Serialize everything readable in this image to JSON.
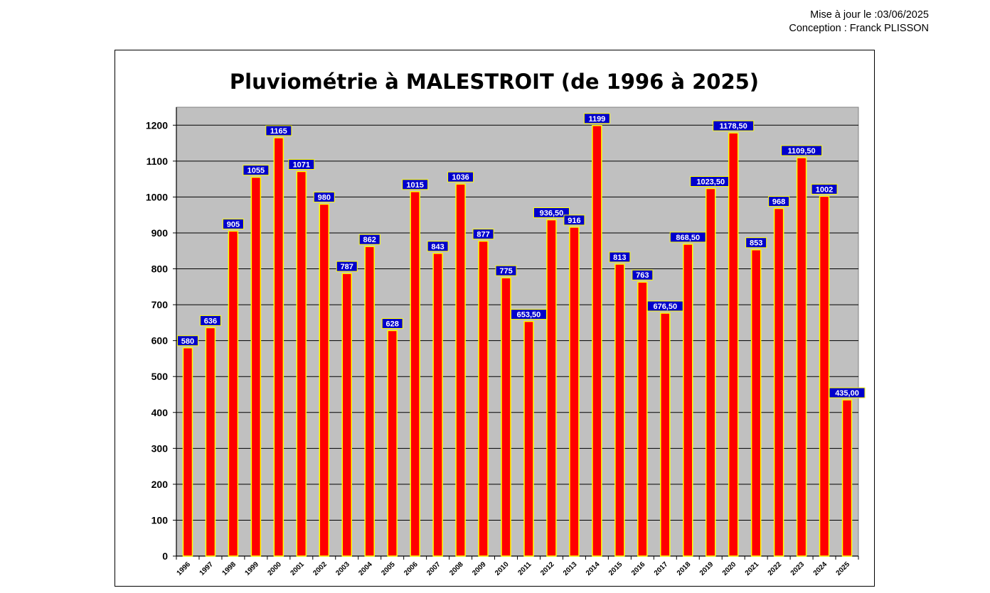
{
  "header": {
    "update_line": "Mise à jour le :03/06/2025",
    "author_line": "Conception : Franck PLISSON"
  },
  "colors": {
    "bar_fill": "#ff0000",
    "bar_stroke": "#ffff00",
    "plot_bg": "#c0c0c0",
    "label_bg": "#0000cc",
    "label_text": "#ffffff"
  },
  "chart_data": {
    "type": "bar",
    "title": "Pluviométrie à MALESTROIT (de 1996 à 2025)",
    "xlabel": "",
    "ylabel": "",
    "ylim": [
      0,
      1250
    ],
    "yticks": [
      0,
      100,
      200,
      300,
      400,
      500,
      600,
      700,
      800,
      900,
      1000,
      1100,
      1200
    ],
    "grid": true,
    "legend": "none",
    "categories": [
      "1996",
      "1997",
      "1998",
      "1999",
      "2000",
      "2001",
      "2002",
      "2003",
      "2004",
      "2005",
      "2006",
      "2007",
      "2008",
      "2009",
      "2010",
      "2011",
      "2012",
      "2013",
      "2014",
      "2015",
      "2016",
      "2017",
      "2018",
      "2019",
      "2020",
      "2021",
      "2022",
      "2023",
      "2024",
      "2025"
    ],
    "values": [
      580,
      636,
      905,
      1055,
      1165,
      1071,
      980,
      787,
      862,
      628,
      1015,
      843,
      1036,
      877,
      775,
      653.5,
      936.5,
      916,
      1199,
      813,
      763,
      676.5,
      868.5,
      1023.5,
      1178.5,
      853,
      968,
      1109.5,
      1002,
      435
    ],
    "data_labels": [
      "580",
      "636",
      "905",
      "1055",
      "1165",
      "1071",
      "980",
      "787",
      "862",
      "628",
      "1015",
      "843",
      "1036",
      "877",
      "775",
      "653,50",
      "936,50",
      "916",
      "1199",
      "813",
      "763",
      "676,50",
      "868,50",
      "1023,50",
      "1178,50",
      "853",
      "968",
      "1109,50",
      "1002",
      "435,00"
    ]
  }
}
